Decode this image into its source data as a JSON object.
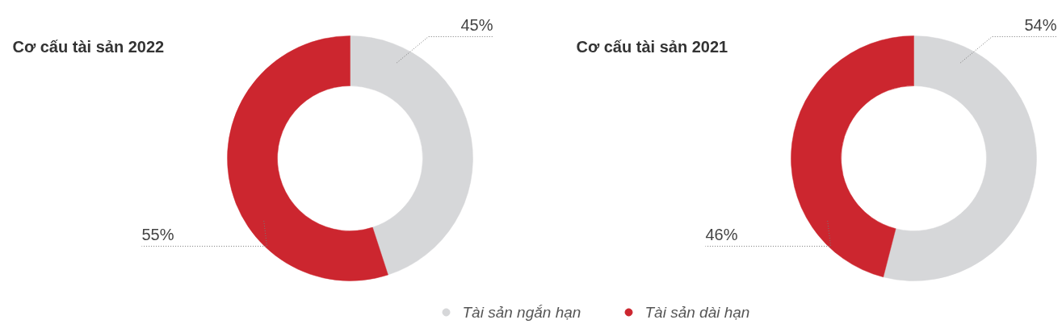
{
  "chart_data": [
    {
      "type": "donut",
      "title": "Cơ cấu tài sản 2022",
      "categories": [
        "Tài sản ngắn hạn",
        "Tài sản dài hạn"
      ],
      "values": [
        45,
        55
      ],
      "colors": [
        "#d6d7d9",
        "#cc262f"
      ],
      "value_labels": [
        "45%",
        "55%"
      ],
      "legend": "bottom"
    },
    {
      "type": "donut",
      "title": "Cơ cấu tài sản 2021",
      "categories": [
        null,
        null
      ],
      "values": [
        54,
        46
      ],
      "colors": [
        "#d6d7d9",
        "#cc262f"
      ],
      "value_labels": [
        "54%",
        "46%"
      ]
    }
  ]
}
